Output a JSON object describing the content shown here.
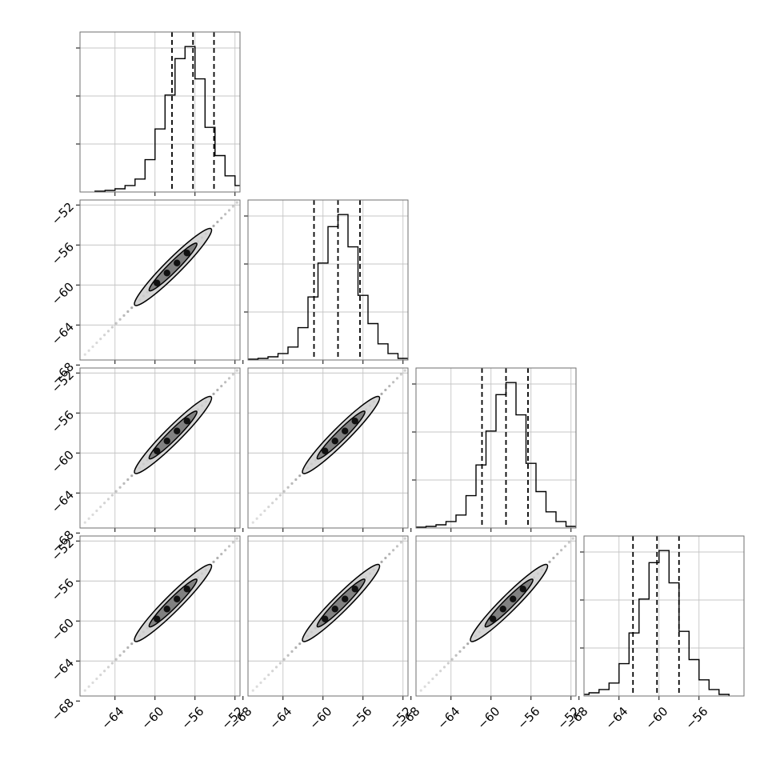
{
  "chart_data": {
    "type": "corner",
    "title": "",
    "parameters": [
      "",
      "",
      "",
      ""
    ],
    "tick_labels": [
      "−68",
      "−64",
      "−60",
      "−56",
      "−52"
    ],
    "axis_range": [
      -67.5,
      -51.5
    ],
    "quantiles": [
      -60.9,
      -58.5,
      -56.3
    ],
    "marginals": [
      {
        "bins": [
          -66.0,
          -65.0,
          -64.0,
          -63.0,
          -62.0,
          -61.0,
          -60.0,
          -59.0,
          -58.0,
          -57.0,
          -56.0,
          -55.0,
          -54.0,
          -53.0,
          -52.0,
          -51.0
        ],
        "counts": [
          1,
          2,
          4,
          8,
          16,
          40,
          78,
          120,
          165,
          180,
          140,
          80,
          45,
          20,
          8,
          2
        ]
      },
      {
        "bins": [
          -67.5,
          -66.5,
          -65.5,
          -64.5,
          -63.5,
          -62.5,
          -61.5,
          -60.5,
          -59.5,
          -58.5,
          -57.5,
          -56.5,
          -55.5,
          -54.5,
          -53.5,
          -52.5
        ],
        "counts": [
          1,
          2,
          4,
          8,
          16,
          40,
          78,
          120,
          165,
          180,
          140,
          80,
          45,
          20,
          8,
          2
        ]
      },
      {
        "bins": [
          -67.5,
          -66.5,
          -65.5,
          -64.5,
          -63.5,
          -62.5,
          -61.5,
          -60.5,
          -59.5,
          -58.5,
          -57.5,
          -56.5,
          -55.5,
          -54.5,
          -53.5,
          -52.5
        ],
        "counts": [
          1,
          2,
          4,
          8,
          16,
          40,
          78,
          120,
          165,
          180,
          140,
          80,
          45,
          20,
          8,
          2
        ]
      },
      {
        "bins": [
          -69.0,
          -68.0,
          -67.0,
          -66.0,
          -65.0,
          -64.0,
          -63.0,
          -62.0,
          -61.0,
          -60.0,
          -59.0,
          -58.0,
          -57.0,
          -56.0,
          -55.0,
          -54.0
        ],
        "counts": [
          1,
          2,
          4,
          8,
          16,
          40,
          78,
          120,
          165,
          180,
          140,
          80,
          45,
          20,
          8,
          2
        ]
      }
    ],
    "x_ticks": [
      [
        -64,
        -60,
        -56,
        -52
      ],
      [
        -68,
        -64,
        -60,
        -56,
        -52
      ],
      [
        -68,
        -64,
        -60,
        -56,
        -52
      ],
      [
        -68,
        -64,
        -60,
        -56
      ]
    ],
    "y_ticks": [
      -68,
      -64,
      -60,
      -56,
      -52
    ],
    "joint": {
      "correlation": 0.995,
      "core_center": [
        -58.2,
        -58.2
      ],
      "contour_span": [
        -62.0,
        -54.5
      ],
      "tail_span": [
        -67.0,
        -51.8
      ]
    },
    "grid": true,
    "legend": "none"
  }
}
